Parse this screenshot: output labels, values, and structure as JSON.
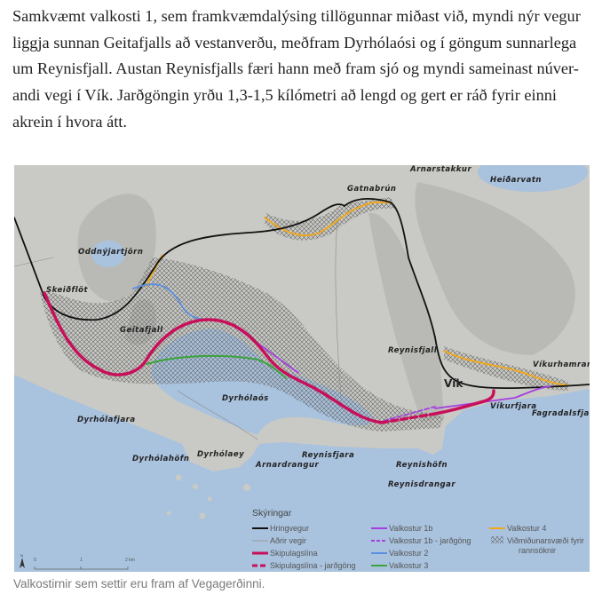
{
  "article": {
    "paragraph_lines": [
      "Samkvæmt valkosti 1, sem framkvæmdalýsing tillögunnar miðast við, myndi nýr vegur",
      "liggja sunnan Geitafjalls að vestanverðu, meðfram Dyrhólaósi og í göngum sunnarlega",
      "um Reynisfjall. Austan Reynisfjalls færi hann með fram sjó og myndi sameinast núver-",
      "andi vegi í Vík. Jarðgöngin yrðu 1,3-1,5 kílómetri að lengd og gert er ráð fyrir einni",
      "akrein í hvora átt."
    ]
  },
  "map": {
    "place_labels": [
      "Arnarstakkur",
      "Heiðarvatn",
      "Gatnabrún",
      "Oddnýjartjörn",
      "Skeiðflöt",
      "Geitafjall",
      "Reynisfjall",
      "Víkurhamrar",
      "Vík",
      "Víkurfjara",
      "Fagradalsfjara",
      "Dyrhólaós",
      "Dyrhólafjara",
      "Dyrhólahöfn",
      "Dyrhólaey",
      "Arnardrangur",
      "Reynisfjara",
      "Reynishöfn",
      "Reynisdrangar"
    ],
    "legend": {
      "title": "Skýringar",
      "items": [
        {
          "label": "Hringvegur",
          "color": "#111111",
          "style": "solid"
        },
        {
          "label": "Aðrir vegir",
          "color": "#999999",
          "style": "thin"
        },
        {
          "label": "Skipulagslína",
          "color": "#c8105a",
          "style": "solid"
        },
        {
          "label": "Skipulagslína - jarðgöng",
          "color": "#c8105a",
          "style": "dashed"
        },
        {
          "label": "Valkostur 1b",
          "color": "#a63ee0",
          "style": "solid"
        },
        {
          "label": "Valkostur 1b - jarðgöng",
          "color": "#a63ee0",
          "style": "dashed"
        },
        {
          "label": "Valkostur 2",
          "color": "#5b8fe0",
          "style": "solid"
        },
        {
          "label": "Valkostur 3",
          "color": "#3aa33a",
          "style": "solid"
        },
        {
          "label": "Valkostur 4",
          "color": "#f0a820",
          "style": "solid"
        },
        {
          "label": "Viðmiðunarsvæði fyrir",
          "label2": "rannsóknir",
          "color": "#555555",
          "style": "hatch"
        }
      ]
    },
    "scale": {
      "ticks": [
        "0",
        "1",
        "2 km"
      ]
    },
    "north_label": "N"
  },
  "caption": "Valkostirnir sem settir eru fram af Vegagerðinni."
}
